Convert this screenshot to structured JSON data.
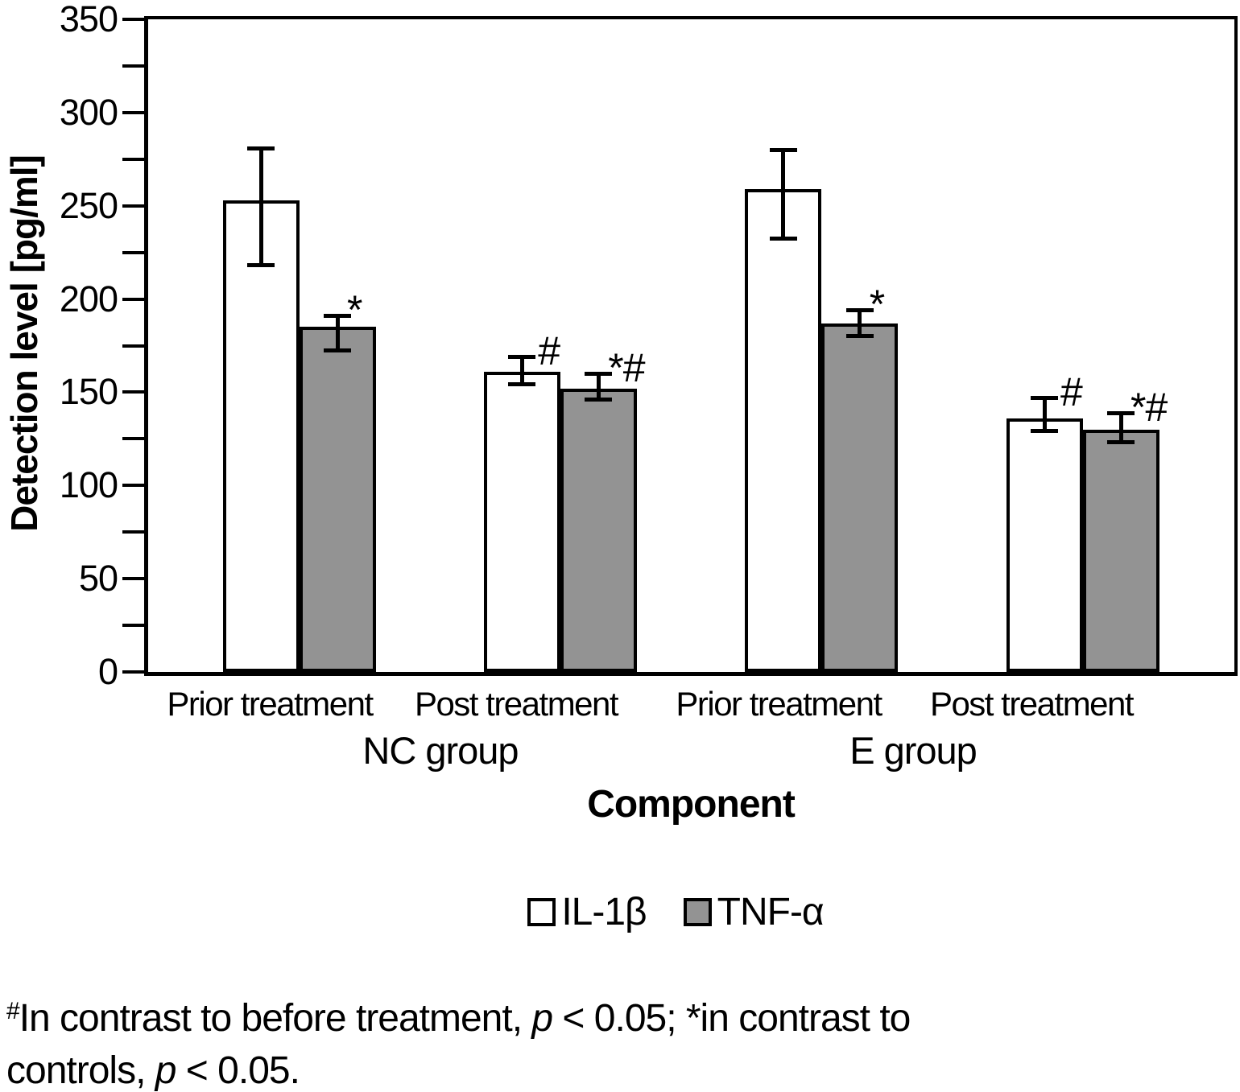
{
  "chart_data": {
    "type": "bar",
    "title": "",
    "ylabel": "Detection level [pg/ml]",
    "xlabel": "Component",
    "ylim": [
      0,
      350
    ],
    "ytick_major": 50,
    "ytick_minor": 25,
    "yticks": [
      0,
      50,
      100,
      150,
      200,
      250,
      300,
      350
    ],
    "grid": false,
    "legend_position": "bottom-center",
    "group_labels": [
      "NC group",
      "E group"
    ],
    "categories": [
      "Prior treatment",
      "Post treatment",
      "Prior treatment",
      "Post treatment"
    ],
    "series": [
      {
        "name": "IL-1β",
        "fill": "#ffffff",
        "border": "#000000",
        "values": [
          253,
          161,
          259,
          136
        ],
        "whisker_low": [
          218,
          154,
          232,
          129
        ],
        "whisker_high": [
          281,
          169,
          280,
          147
        ],
        "annotations": [
          "",
          "#",
          "",
          "#"
        ]
      },
      {
        "name": "TNF-α",
        "fill": "#939393",
        "border": "#000000",
        "values": [
          185,
          152,
          187,
          130
        ],
        "whisker_low": [
          172,
          146,
          180,
          123
        ],
        "whisker_high": [
          191,
          160,
          194,
          139
        ],
        "annotations": [
          "*",
          "*#",
          "*",
          "*#"
        ]
      }
    ]
  },
  "footnote": {
    "lines": [
      [
        {
          "t": "#",
          "s": "sup"
        },
        {
          "t": "In contrast to before treatment, ",
          "s": "n"
        },
        {
          "t": "p",
          "s": "i"
        },
        {
          "t": " < 0.05; *in contrast to",
          "s": "n"
        }
      ],
      [
        {
          "t": "controls, ",
          "s": "n"
        },
        {
          "t": "p",
          "s": "i"
        },
        {
          "t": " < 0.05.",
          "s": "n"
        }
      ]
    ]
  }
}
